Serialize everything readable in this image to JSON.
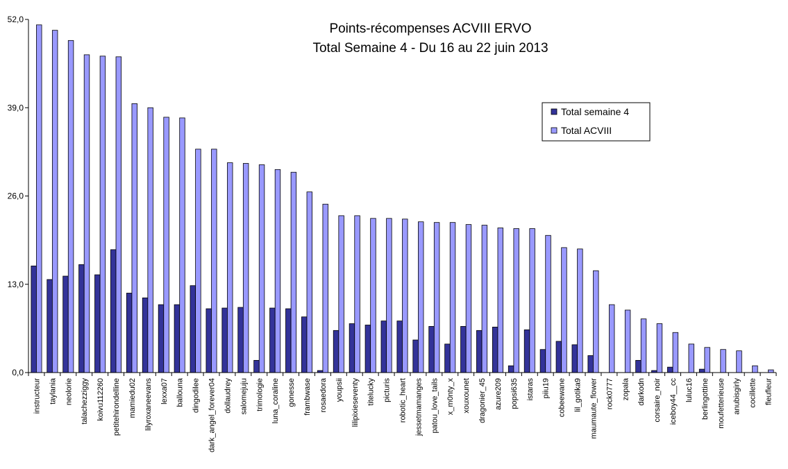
{
  "chart_data": {
    "type": "bar",
    "title": "Points-récompenses ACVIII ERVO",
    "subtitle": "Total Semaine 4 - Du 16 au 22 juin 2013",
    "xlabel": "",
    "ylabel": "",
    "ylim": [
      0,
      52
    ],
    "yticks": [
      "0,0",
      "13,0",
      "26,0",
      "39,0",
      "52,0"
    ],
    "grid": false,
    "legend_position": "top-right",
    "categories": [
      "instructeur",
      "taylania",
      "neolorie",
      "talachezziggy",
      "koivu112260",
      "petitehirondelline",
      "mamiedu02",
      "lilyroxaneevans",
      "lexxa07",
      "ballouna",
      "dingodilee",
      "dark_angel_forever04",
      "dollaudrey",
      "salomejuju",
      "trimologie",
      "luna_coraline",
      "gonesse",
      "frambwase",
      "rosaedora",
      "youpsii",
      "lilipixieseventy",
      "titelucky",
      "picturis",
      "robotic_heart",
      "jessetmamanges",
      "patou_love_tails",
      "x_m0nty_x",
      "xouxounet",
      "dragonier_45",
      "azure209",
      "popsi635",
      "istaras",
      "piiu19",
      "cobeewane",
      "lil_gotika9",
      "maumaute_flower",
      "rock0777",
      "zopala",
      "darkodn",
      "corsaire_noir",
      "iceboy44__cc",
      "luluc16",
      "berlingottine",
      "moufetterieuse",
      "anubisgirly",
      "cocillette",
      "fleufleur"
    ],
    "series": [
      {
        "name": "Total semaine 4",
        "color": "#333399",
        "values": [
          15.7,
          13.7,
          14.2,
          15.9,
          14.4,
          18.1,
          11.7,
          11.0,
          10.0,
          10.0,
          12.8,
          9.4,
          9.5,
          9.6,
          1.8,
          9.5,
          9.4,
          8.2,
          0.3,
          6.2,
          7.2,
          7.0,
          7.6,
          7.6,
          4.8,
          6.8,
          4.2,
          6.8,
          6.2,
          6.7,
          1.0,
          6.3,
          3.4,
          4.6,
          4.1,
          2.5,
          0,
          0,
          1.8,
          0.3,
          0.8,
          0,
          0.5,
          0,
          0,
          0,
          0
        ]
      },
      {
        "name": "Total ACVIII",
        "color": "#9999ff",
        "values": [
          51.2,
          50.4,
          48.9,
          46.8,
          46.6,
          46.5,
          39.6,
          39.0,
          37.6,
          37.5,
          32.9,
          32.9,
          30.9,
          30.8,
          30.6,
          29.9,
          29.5,
          26.6,
          24.8,
          23.1,
          23.1,
          22.7,
          22.7,
          22.6,
          22.2,
          22.1,
          22.1,
          21.8,
          21.7,
          21.3,
          21.2,
          21.2,
          20.2,
          18.4,
          18.2,
          15.0,
          10.0,
          9.2,
          7.9,
          7.2,
          5.9,
          4.2,
          3.7,
          3.4,
          3.2,
          1.0,
          0.4
        ]
      }
    ]
  }
}
